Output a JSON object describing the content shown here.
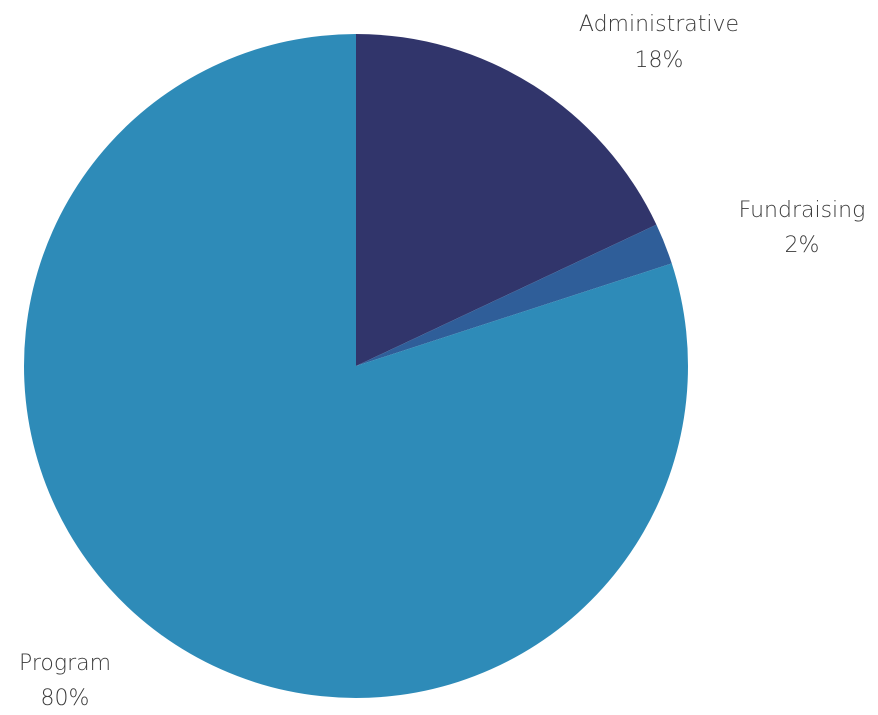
{
  "chart_data": {
    "type": "pie",
    "title": "",
    "slices": [
      {
        "label": "Administrative",
        "value": 18,
        "value_label": "18%",
        "color": "#31356b"
      },
      {
        "label": "Fundraising",
        "value": 2,
        "value_label": "2%",
        "color": "#2f5e99"
      },
      {
        "label": "Program",
        "value": 80,
        "value_label": "80%",
        "color": "#2e8bb8"
      }
    ],
    "start_angle_deg": 0,
    "direction": "clockwise",
    "legend": "none"
  }
}
